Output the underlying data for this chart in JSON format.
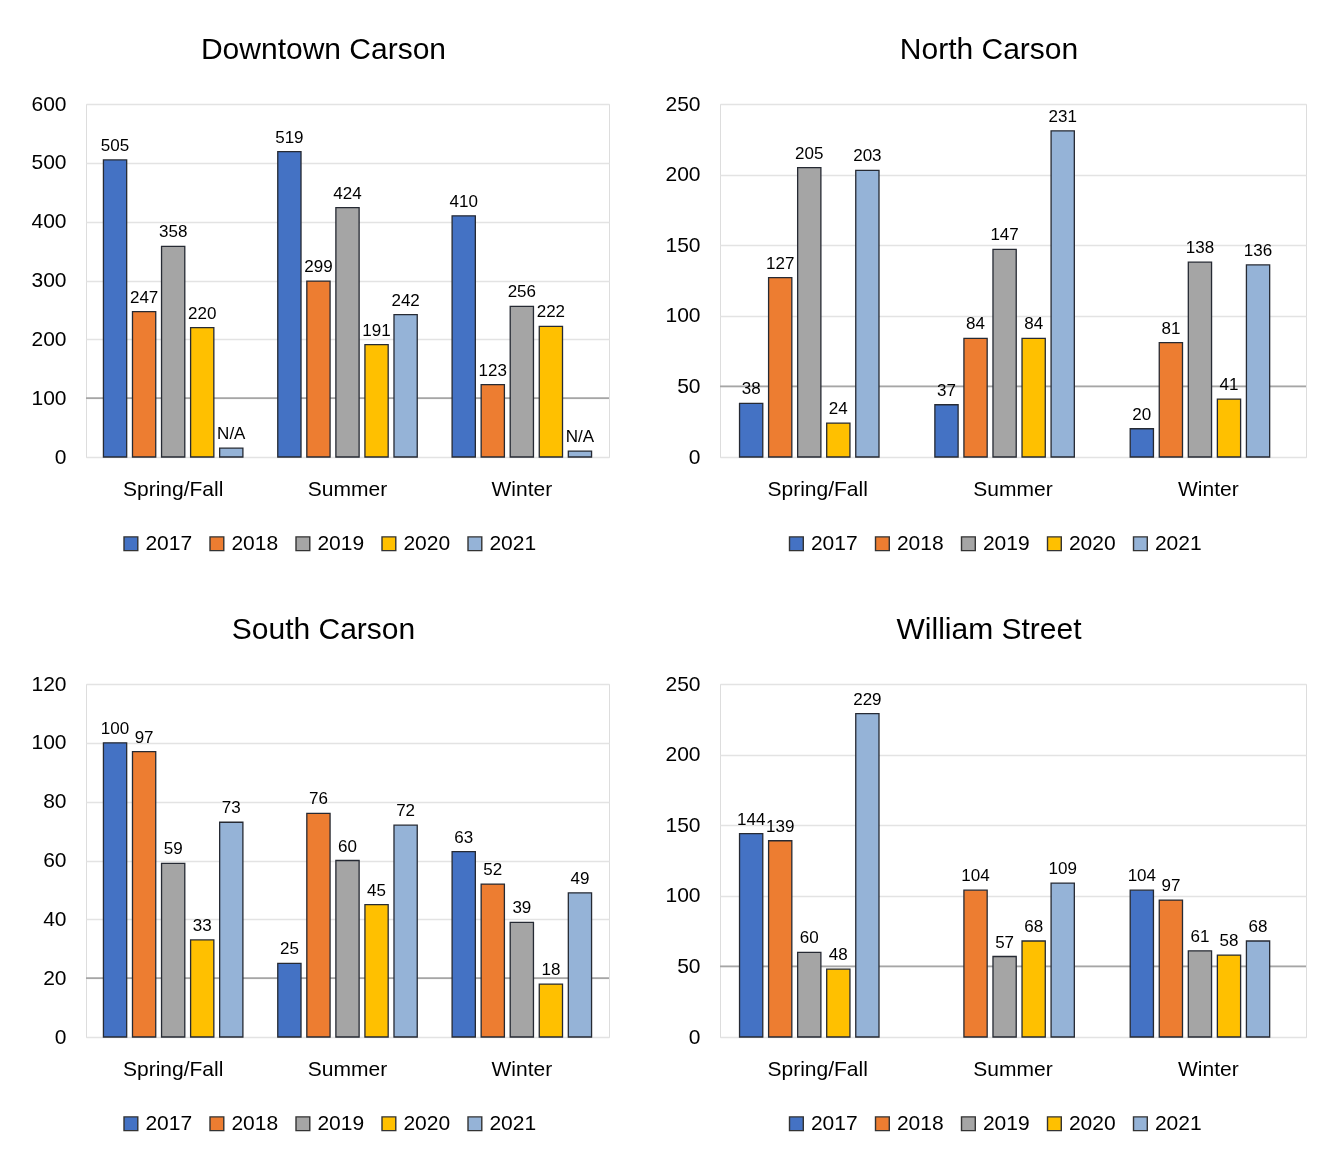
{
  "chart_data": [
    {
      "type": "bar",
      "title": "Downtown Carson",
      "categories": [
        "Spring/Fall",
        "Summer",
        "Winter"
      ],
      "series": [
        {
          "name": "2017",
          "color": "#4472c4",
          "values": [
            505,
            519,
            410
          ],
          "value_labels": [
            "505",
            "519",
            "410"
          ]
        },
        {
          "name": "2018",
          "color": "#ed7d31",
          "values": [
            247,
            299,
            123
          ],
          "value_labels": [
            "247",
            "299",
            "123"
          ]
        },
        {
          "name": "2019",
          "color": "#a5a5a5",
          "values": [
            358,
            424,
            256
          ],
          "value_labels": [
            "358",
            "424",
            "256"
          ]
        },
        {
          "name": "2020",
          "color": "#ffc000",
          "values": [
            220,
            191,
            222
          ],
          "value_labels": [
            "220",
            "191",
            "222"
          ]
        },
        {
          "name": "2021",
          "color": "#95b3d7",
          "values": [
            15,
            242,
            10
          ],
          "value_labels": [
            "N/A",
            "242",
            "N/A"
          ]
        }
      ],
      "ylim": [
        0,
        600
      ],
      "yticks": [
        0,
        100,
        200,
        300,
        400,
        500,
        600
      ],
      "grid": "y",
      "legend": "bottom",
      "ref_lines": [
        {
          "axis": "y",
          "value": 100,
          "color": "#a6a6a6"
        }
      ]
    },
    {
      "type": "bar",
      "title": "North Carson",
      "categories": [
        "Spring/Fall",
        "Summer",
        "Winter"
      ],
      "series": [
        {
          "name": "2017",
          "color": "#4472c4",
          "values": [
            38,
            37,
            20
          ]
        },
        {
          "name": "2018",
          "color": "#ed7d31",
          "values": [
            127,
            84,
            81
          ]
        },
        {
          "name": "2019",
          "color": "#a5a5a5",
          "values": [
            205,
            147,
            138
          ]
        },
        {
          "name": "2020",
          "color": "#ffc000",
          "values": [
            24,
            84,
            41
          ]
        },
        {
          "name": "2021",
          "color": "#95b3d7",
          "values": [
            203,
            231,
            136
          ]
        }
      ],
      "ylim": [
        0,
        250
      ],
      "yticks": [
        0,
        50,
        100,
        150,
        200,
        250
      ],
      "grid": "y",
      "legend": "bottom",
      "data_labels": true,
      "ref_lines": [
        {
          "axis": "y",
          "value": 50,
          "color": "#a6a6a6"
        }
      ]
    },
    {
      "type": "bar",
      "title": "South Carson",
      "categories": [
        "Spring/Fall",
        "Summer",
        "Winter"
      ],
      "series": [
        {
          "name": "2017",
          "color": "#4472c4",
          "values": [
            100,
            25,
            63
          ]
        },
        {
          "name": "2018",
          "color": "#ed7d31",
          "values": [
            97,
            76,
            52
          ]
        },
        {
          "name": "2019",
          "color": "#a5a5a5",
          "values": [
            59,
            60,
            39
          ]
        },
        {
          "name": "2020",
          "color": "#ffc000",
          "values": [
            33,
            45,
            18
          ]
        },
        {
          "name": "2021",
          "color": "#95b3d7",
          "values": [
            73,
            72,
            49
          ]
        }
      ],
      "ylim": [
        0,
        120
      ],
      "yticks": [
        0,
        20,
        40,
        60,
        80,
        100,
        120
      ],
      "grid": "y",
      "legend": "bottom",
      "data_labels": true,
      "ref_lines": [
        {
          "axis": "y",
          "value": 20,
          "color": "#a6a6a6"
        }
      ]
    },
    {
      "type": "bar",
      "title": "William Street",
      "categories": [
        "Spring/Fall",
        "Summer",
        "Winter"
      ],
      "series": [
        {
          "name": "2017",
          "color": "#4472c4",
          "values": [
            144,
            null,
            104
          ]
        },
        {
          "name": "2018",
          "color": "#ed7d31",
          "values": [
            139,
            104,
            97
          ]
        },
        {
          "name": "2019",
          "color": "#a5a5a5",
          "values": [
            60,
            57,
            61
          ]
        },
        {
          "name": "2020",
          "color": "#ffc000",
          "values": [
            48,
            68,
            58
          ]
        },
        {
          "name": "2021",
          "color": "#95b3d7",
          "values": [
            229,
            109,
            68
          ]
        }
      ],
      "ylim": [
        0,
        250
      ],
      "yticks": [
        0,
        50,
        100,
        150,
        200,
        250
      ],
      "grid": "y",
      "legend": "bottom",
      "data_labels": true,
      "ref_lines": [
        {
          "axis": "y",
          "value": 50,
          "color": "#a6a6a6"
        }
      ]
    }
  ]
}
